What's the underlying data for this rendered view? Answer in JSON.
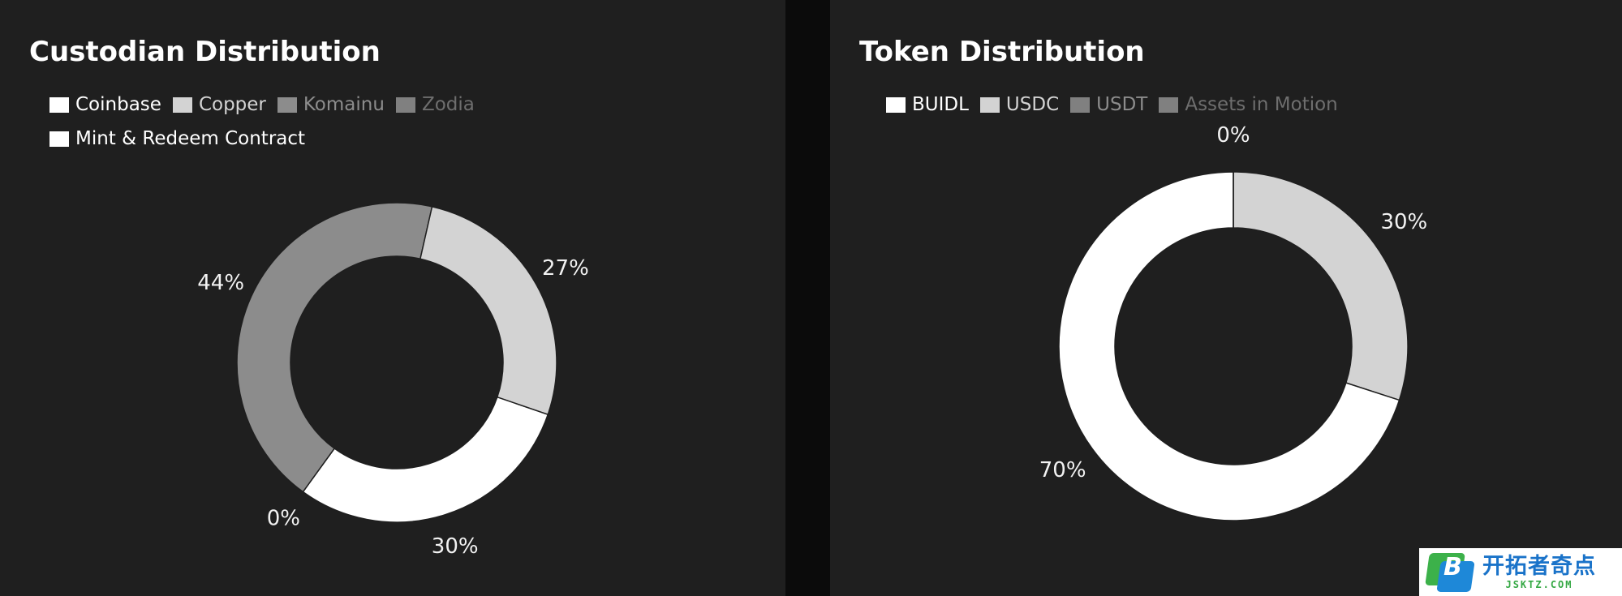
{
  "chart_data": [
    {
      "type": "donut",
      "title": "Custodian Distribution",
      "legend_placement": "top-left",
      "series": [
        {
          "name": "Coinbase",
          "value": 30,
          "label": "30%",
          "color": "#ffffff",
          "legend_text_color": "#ffffff"
        },
        {
          "name": "Copper",
          "value": 27,
          "label": "27%",
          "color": "#d3d3d3",
          "legend_text_color": "#d3d3d3"
        },
        {
          "name": "Komainu",
          "value": 44,
          "label": "44%",
          "color": "#8c8c8c",
          "legend_text_color": "#8c8c8c"
        },
        {
          "name": "Zodia",
          "value": 0,
          "label": "",
          "color": "#808080",
          "legend_text_color": "#6e6e6e"
        },
        {
          "name": "Mint & Redeem Contract",
          "value": 0,
          "label": "0%",
          "color": "#ffffff",
          "legend_text_color": "#ffffff"
        }
      ],
      "slice_order": [
        "Coinbase",
        "Mint & Redeem Contract",
        "Komainu",
        "Copper"
      ],
      "start_angle_deg": -19
    },
    {
      "type": "donut",
      "title": "Token Distribution",
      "legend_placement": "top-left",
      "series": [
        {
          "name": "BUIDL",
          "value": 70,
          "label": "70%",
          "color": "#ffffff",
          "legend_text_color": "#ffffff"
        },
        {
          "name": "USDC",
          "value": 30,
          "label": "30%",
          "color": "#d3d3d3",
          "legend_text_color": "#d3d3d3"
        },
        {
          "name": "USDT",
          "value": 0,
          "label": "",
          "color": "#808080",
          "legend_text_color": "#8c8c8c"
        },
        {
          "name": "Assets in Motion",
          "value": 0,
          "label": "0%",
          "color": "#808080",
          "legend_text_color": "#6e6e6e"
        }
      ],
      "slice_order": [
        "USDC",
        "BUIDL",
        "Assets in Motion"
      ],
      "start_angle_deg": 90
    }
  ],
  "watermark": {
    "cn_text": "开拓者奇点",
    "en_text": "JSKTZ.COM",
    "logo_letter": "B"
  }
}
